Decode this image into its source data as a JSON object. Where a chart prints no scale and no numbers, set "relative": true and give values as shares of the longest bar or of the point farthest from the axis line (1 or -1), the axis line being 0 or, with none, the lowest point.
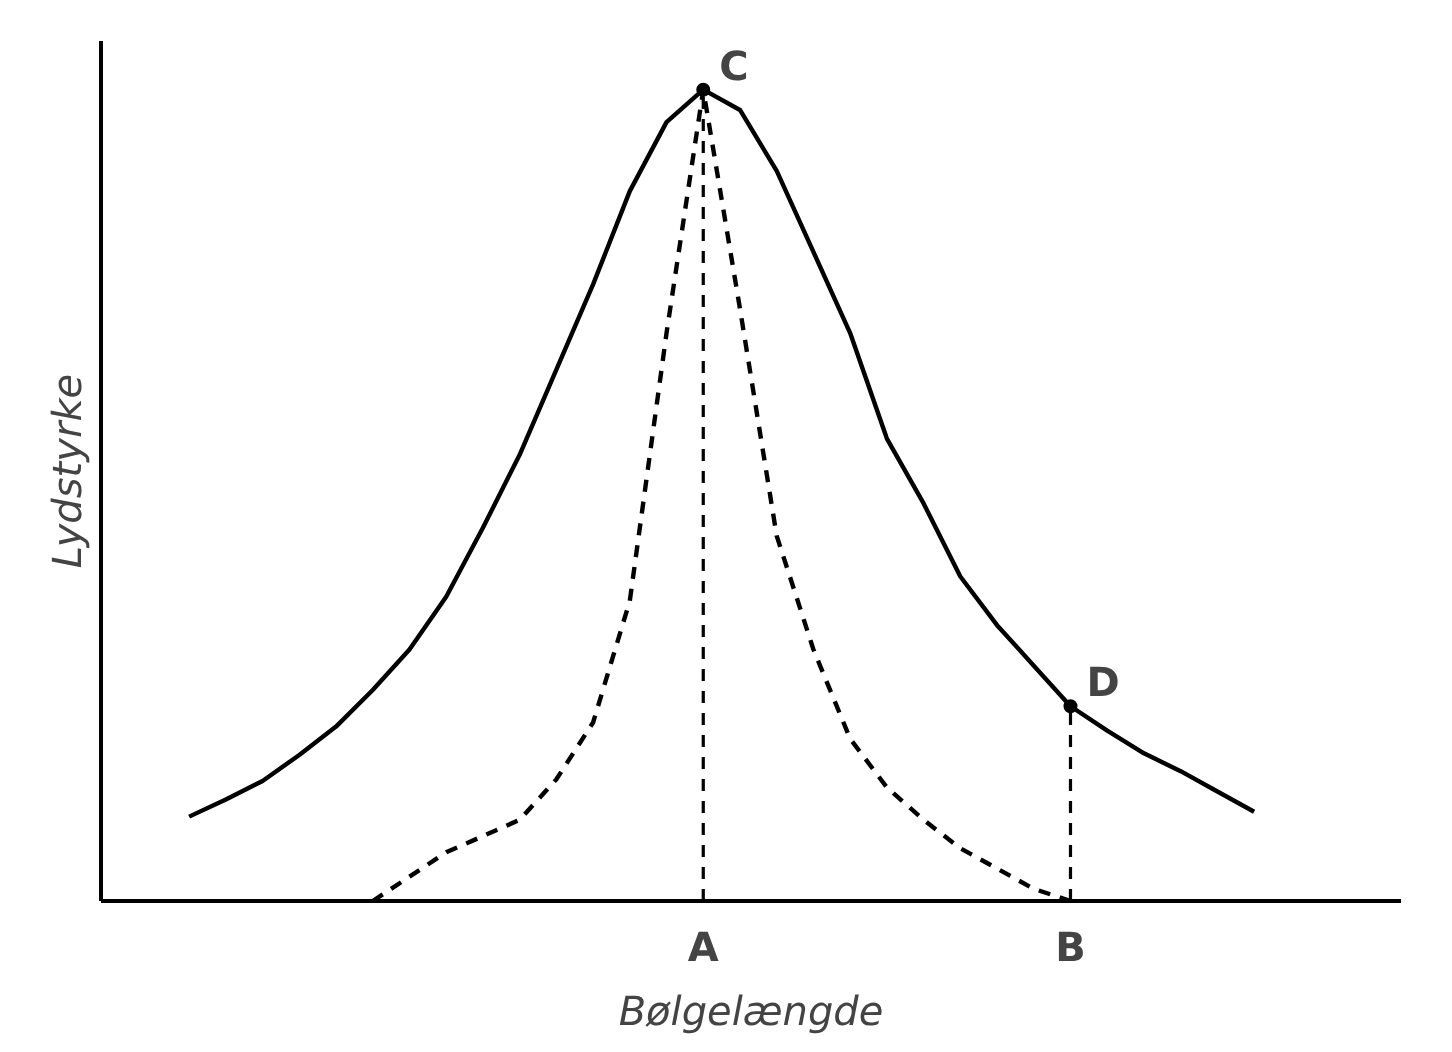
{
  "chart_data": {
    "type": "line",
    "relative": true,
    "xlabel": "Bølgelængde",
    "ylabel": "Lydstyrke",
    "grid": false,
    "categories": [
      null,
      null,
      null,
      null,
      null,
      null,
      null,
      null,
      null,
      null,
      null,
      null,
      null,
      null,
      "A",
      null,
      null,
      null,
      null,
      null,
      null,
      null,
      null,
      null,
      "B",
      null,
      null,
      null,
      null,
      null
    ],
    "series": [
      {
        "color": "#000000",
        "line_style": "solid",
        "values": [
          0.104,
          0.125,
          0.148,
          0.18,
          0.215,
          0.26,
          0.31,
          0.375,
          0.46,
          0.55,
          0.655,
          0.76,
          0.875,
          0.96,
          1,
          0.975,
          0.9,
          0.8,
          0.7,
          0.57,
          0.49,
          0.4,
          0.34,
          0.29,
          0.24,
          0.21,
          0.182,
          0.16,
          0.135,
          0.11
        ]
      },
      {
        "color": "#000000",
        "line_style": "dashed",
        "values": [
          null,
          null,
          null,
          null,
          null,
          0,
          0.03,
          0.06,
          0.08,
          0.1,
          0.15,
          0.22,
          0.37,
          0.7,
          1,
          0.73,
          0.45,
          0.31,
          0.2,
          0.14,
          0.1,
          0.065,
          0.04,
          0.015,
          0,
          null,
          null,
          null,
          null,
          null
        ]
      }
    ],
    "ref_lines": [
      {
        "axis": "x",
        "value": "A",
        "line_style": "dashed"
      },
      {
        "axis": "x",
        "value": "B",
        "line_style": "dashed"
      }
    ],
    "annotations": [
      {
        "text": "C",
        "x": "A",
        "y": 1
      },
      {
        "text": "D",
        "x": "B",
        "y": 0.24
      }
    ]
  }
}
